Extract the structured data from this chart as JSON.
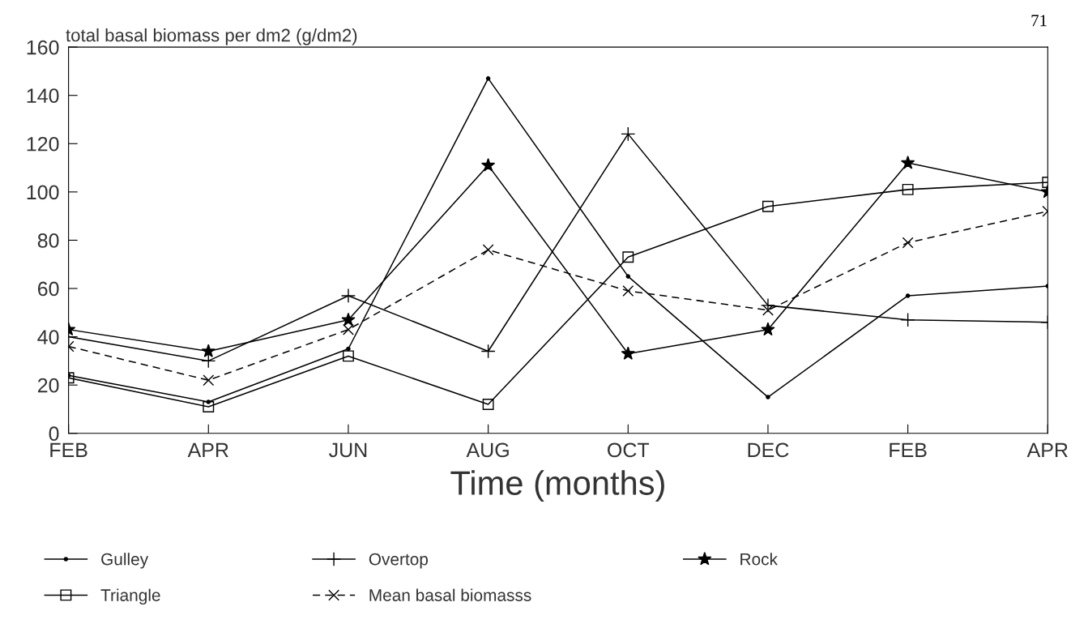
{
  "chart_data": {
    "type": "line",
    "ylabel": "total basal biomass per dm2 (g/dm2)",
    "xlabel": "Time (months)",
    "annotations": [
      "71"
    ],
    "categories": [
      "FEB",
      "APR",
      "JUN",
      "AUG",
      "OCT",
      "DEC",
      "FEB",
      "APR"
    ],
    "ylim": [
      0,
      160
    ],
    "yticks": [
      0,
      20,
      40,
      60,
      80,
      100,
      120,
      140,
      160
    ],
    "grid": false,
    "legend": "bottom",
    "series": [
      {
        "name": "Gulley",
        "color": "#000000",
        "marker": "circle",
        "line_style": "solid",
        "values": [
          24,
          13,
          35,
          147,
          65,
          15,
          57,
          61
        ]
      },
      {
        "name": "Overtop",
        "color": "#000000",
        "marker": "plus",
        "line_style": "solid",
        "values": [
          40,
          30,
          57,
          34,
          124,
          53,
          47,
          46
        ]
      },
      {
        "name": "Rock",
        "color": "#000000",
        "marker": "star",
        "line_style": "solid",
        "values": [
          43,
          34,
          47,
          111,
          33,
          43,
          112,
          100
        ]
      },
      {
        "name": "Triangle",
        "color": "#000000",
        "marker": "square",
        "line_style": "solid",
        "values": [
          23,
          11,
          32,
          12,
          73,
          94,
          101,
          104
        ]
      },
      {
        "name": "Mean basal biomasss",
        "color": "#000000",
        "marker": "cross",
        "line_style": "dashed",
        "values": [
          36,
          22,
          43,
          76,
          59,
          51,
          79,
          92
        ]
      }
    ]
  }
}
